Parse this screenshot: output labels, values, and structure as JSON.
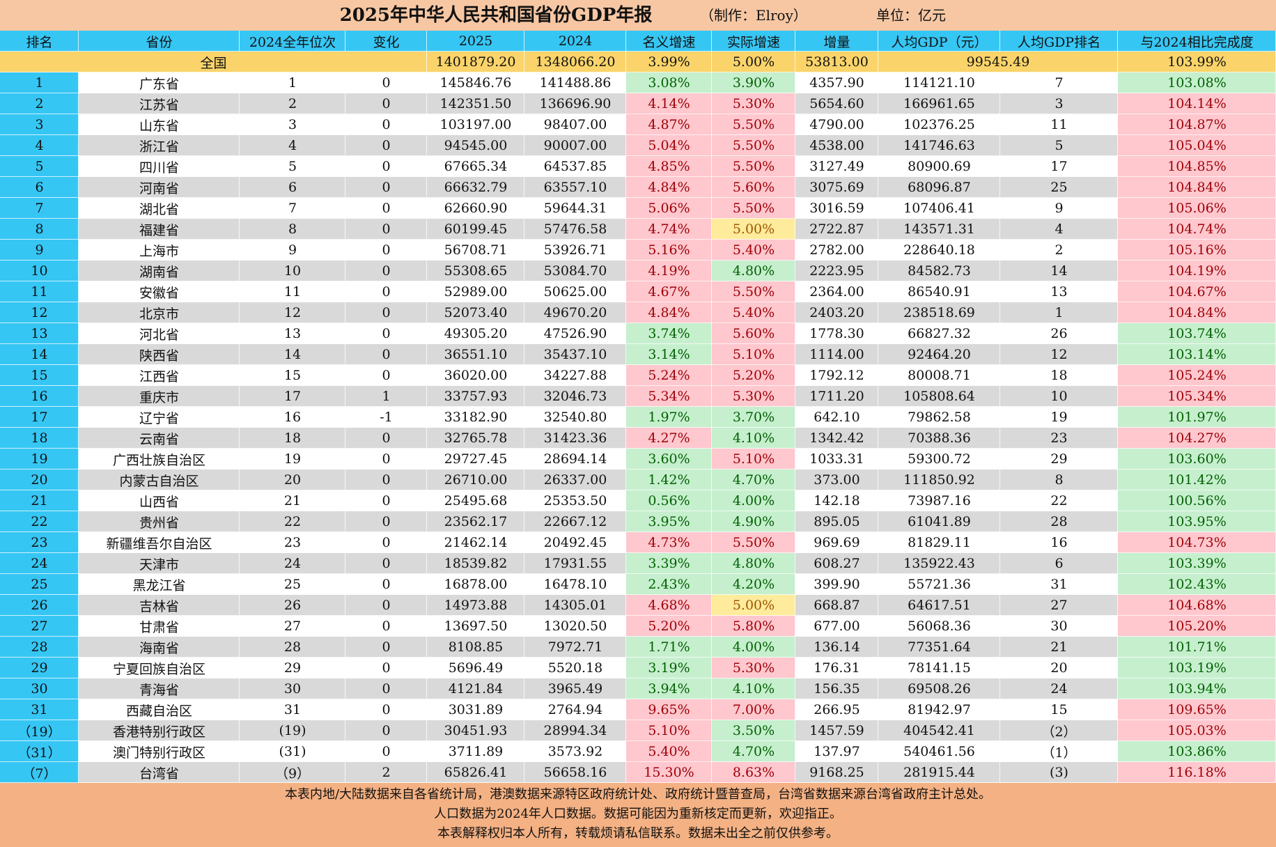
{
  "header": {
    "title": "2025年中华人民共和国省份GDP年报",
    "credit": "（制作：Elroy）",
    "unit": "单位：亿元"
  },
  "table": {
    "columns": [
      "排名",
      "省份",
      "2024全年位次",
      "变化",
      "2025",
      "2024",
      "名义增速",
      "实际增速",
      "增量",
      "人均GDP（元）",
      "人均GDP排名",
      "与2024相比完成度"
    ],
    "summary": [
      "全国",
      "1401879.20",
      "1348066.20",
      "3.99%",
      "5.00%",
      "53813.00",
      "99545.49",
      "103.99%"
    ],
    "rows": [
      {
        "cells": [
          "1",
          "广东省",
          "1",
          "0",
          "145846.76",
          "141488.86",
          "3.08%",
          "3.90%",
          "4357.90",
          "114121.10",
          "7",
          "103.08%"
        ],
        "shade": [
          "green",
          "green",
          "green"
        ]
      },
      {
        "cells": [
          "2",
          "江苏省",
          "2",
          "0",
          "142351.50",
          "136696.90",
          "4.14%",
          "5.30%",
          "5654.60",
          "166961.65",
          "3",
          "104.14%"
        ],
        "shade": [
          "red",
          "red",
          "red"
        ]
      },
      {
        "cells": [
          "3",
          "山东省",
          "3",
          "0",
          "103197.00",
          "98407.00",
          "4.87%",
          "5.50%",
          "4790.00",
          "102376.25",
          "11",
          "104.87%"
        ],
        "shade": [
          "red",
          "red",
          "red"
        ]
      },
      {
        "cells": [
          "4",
          "浙江省",
          "4",
          "0",
          "94545.00",
          "90007.00",
          "5.04%",
          "5.50%",
          "4538.00",
          "141746.63",
          "5",
          "105.04%"
        ],
        "shade": [
          "red",
          "red",
          "red"
        ]
      },
      {
        "cells": [
          "5",
          "四川省",
          "5",
          "0",
          "67665.34",
          "64537.85",
          "4.85%",
          "5.50%",
          "3127.49",
          "80900.69",
          "17",
          "104.85%"
        ],
        "shade": [
          "red",
          "red",
          "red"
        ]
      },
      {
        "cells": [
          "6",
          "河南省",
          "6",
          "0",
          "66632.79",
          "63557.10",
          "4.84%",
          "5.60%",
          "3075.69",
          "68096.87",
          "25",
          "104.84%"
        ],
        "shade": [
          "red",
          "red",
          "red"
        ]
      },
      {
        "cells": [
          "7",
          "湖北省",
          "7",
          "0",
          "62660.90",
          "59644.31",
          "5.06%",
          "5.50%",
          "3016.59",
          "107406.41",
          "9",
          "105.06%"
        ],
        "shade": [
          "red",
          "red",
          "red"
        ]
      },
      {
        "cells": [
          "8",
          "福建省",
          "8",
          "0",
          "60199.45",
          "57476.58",
          "4.74%",
          "5.00%",
          "2722.87",
          "143571.31",
          "4",
          "104.74%"
        ],
        "shade": [
          "red",
          "yellow",
          "red"
        ]
      },
      {
        "cells": [
          "9",
          "上海市",
          "9",
          "0",
          "56708.71",
          "53926.71",
          "5.16%",
          "5.40%",
          "2782.00",
          "228640.18",
          "2",
          "105.16%"
        ],
        "shade": [
          "red",
          "red",
          "red"
        ]
      },
      {
        "cells": [
          "10",
          "湖南省",
          "10",
          "0",
          "55308.65",
          "53084.70",
          "4.19%",
          "4.80%",
          "2223.95",
          "84582.73",
          "14",
          "104.19%"
        ],
        "shade": [
          "red",
          "green",
          "red"
        ]
      },
      {
        "cells": [
          "11",
          "安徽省",
          "11",
          "0",
          "52989.00",
          "50625.00",
          "4.67%",
          "5.50%",
          "2364.00",
          "86540.91",
          "13",
          "104.67%"
        ],
        "shade": [
          "red",
          "red",
          "red"
        ]
      },
      {
        "cells": [
          "12",
          "北京市",
          "12",
          "0",
          "52073.40",
          "49670.20",
          "4.84%",
          "5.40%",
          "2403.20",
          "238518.69",
          "1",
          "104.84%"
        ],
        "shade": [
          "red",
          "red",
          "red"
        ]
      },
      {
        "cells": [
          "13",
          "河北省",
          "13",
          "0",
          "49305.20",
          "47526.90",
          "3.74%",
          "5.60%",
          "1778.30",
          "66827.32",
          "26",
          "103.74%"
        ],
        "shade": [
          "green",
          "red",
          "green"
        ]
      },
      {
        "cells": [
          "14",
          "陕西省",
          "14",
          "0",
          "36551.10",
          "35437.10",
          "3.14%",
          "5.10%",
          "1114.00",
          "92464.20",
          "12",
          "103.14%"
        ],
        "shade": [
          "green",
          "red",
          "green"
        ]
      },
      {
        "cells": [
          "15",
          "江西省",
          "15",
          "0",
          "36020.00",
          "34227.88",
          "5.24%",
          "5.20%",
          "1792.12",
          "80008.71",
          "18",
          "105.24%"
        ],
        "shade": [
          "red",
          "red",
          "red"
        ]
      },
      {
        "cells": [
          "16",
          "重庆市",
          "17",
          "1",
          "33757.93",
          "32046.73",
          "5.34%",
          "5.30%",
          "1711.20",
          "105808.64",
          "10",
          "105.34%"
        ],
        "shade": [
          "red",
          "red",
          "red"
        ]
      },
      {
        "cells": [
          "17",
          "辽宁省",
          "16",
          "-1",
          "33182.90",
          "32540.80",
          "1.97%",
          "3.70%",
          "642.10",
          "79862.58",
          "19",
          "101.97%"
        ],
        "shade": [
          "green",
          "green",
          "green"
        ]
      },
      {
        "cells": [
          "18",
          "云南省",
          "18",
          "0",
          "32765.78",
          "31423.36",
          "4.27%",
          "4.10%",
          "1342.42",
          "70388.36",
          "23",
          "104.27%"
        ],
        "shade": [
          "red",
          "green",
          "red"
        ]
      },
      {
        "cells": [
          "19",
          "广西壮族自治区",
          "19",
          "0",
          "29727.45",
          "28694.14",
          "3.60%",
          "5.10%",
          "1033.31",
          "59300.72",
          "29",
          "103.60%"
        ],
        "shade": [
          "green",
          "red",
          "green"
        ]
      },
      {
        "cells": [
          "20",
          "内蒙古自治区",
          "20",
          "0",
          "26710.00",
          "26337.00",
          "1.42%",
          "4.70%",
          "373.00",
          "111850.92",
          "8",
          "101.42%"
        ],
        "shade": [
          "green",
          "green",
          "green"
        ]
      },
      {
        "cells": [
          "21",
          "山西省",
          "21",
          "0",
          "25495.68",
          "25353.50",
          "0.56%",
          "4.00%",
          "142.18",
          "73987.16",
          "22",
          "100.56%"
        ],
        "shade": [
          "green",
          "green",
          "green"
        ]
      },
      {
        "cells": [
          "22",
          "贵州省",
          "22",
          "0",
          "23562.17",
          "22667.12",
          "3.95%",
          "4.90%",
          "895.05",
          "61041.89",
          "28",
          "103.95%"
        ],
        "shade": [
          "green",
          "green",
          "green"
        ]
      },
      {
        "cells": [
          "23",
          "新疆维吾尔自治区",
          "23",
          "0",
          "21462.14",
          "20492.45",
          "4.73%",
          "5.50%",
          "969.69",
          "81829.11",
          "16",
          "104.73%"
        ],
        "shade": [
          "red",
          "red",
          "red"
        ]
      },
      {
        "cells": [
          "24",
          "天津市",
          "24",
          "0",
          "18539.82",
          "17931.55",
          "3.39%",
          "4.80%",
          "608.27",
          "135922.43",
          "6",
          "103.39%"
        ],
        "shade": [
          "green",
          "green",
          "green"
        ]
      },
      {
        "cells": [
          "25",
          "黑龙江省",
          "25",
          "0",
          "16878.00",
          "16478.10",
          "2.43%",
          "4.20%",
          "399.90",
          "55721.36",
          "31",
          "102.43%"
        ],
        "shade": [
          "green",
          "green",
          "green"
        ]
      },
      {
        "cells": [
          "26",
          "吉林省",
          "26",
          "0",
          "14973.88",
          "14305.01",
          "4.68%",
          "5.00%",
          "668.87",
          "64617.51",
          "27",
          "104.68%"
        ],
        "shade": [
          "red",
          "yellow",
          "red"
        ]
      },
      {
        "cells": [
          "27",
          "甘肃省",
          "27",
          "0",
          "13697.50",
          "13020.50",
          "5.20%",
          "5.80%",
          "677.00",
          "56068.36",
          "30",
          "105.20%"
        ],
        "shade": [
          "red",
          "red",
          "red"
        ]
      },
      {
        "cells": [
          "28",
          "海南省",
          "28",
          "0",
          "8108.85",
          "7972.71",
          "1.71%",
          "4.00%",
          "136.14",
          "77351.64",
          "21",
          "101.71%"
        ],
        "shade": [
          "green",
          "green",
          "green"
        ]
      },
      {
        "cells": [
          "29",
          "宁夏回族自治区",
          "29",
          "0",
          "5696.49",
          "5520.18",
          "3.19%",
          "5.30%",
          "176.31",
          "78141.15",
          "20",
          "103.19%"
        ],
        "shade": [
          "green",
          "red",
          "green"
        ]
      },
      {
        "cells": [
          "30",
          "青海省",
          "30",
          "0",
          "4121.84",
          "3965.49",
          "3.94%",
          "4.10%",
          "156.35",
          "69508.26",
          "24",
          "103.94%"
        ],
        "shade": [
          "green",
          "green",
          "green"
        ]
      },
      {
        "cells": [
          "31",
          "西藏自治区",
          "31",
          "0",
          "3031.89",
          "2764.94",
          "9.65%",
          "7.00%",
          "266.95",
          "81942.97",
          "15",
          "109.65%"
        ],
        "shade": [
          "red",
          "red",
          "red"
        ]
      },
      {
        "cells": [
          "（19）",
          "香港特别行政区",
          "(19)",
          "0",
          "30451.93",
          "28994.34",
          "5.10%",
          "3.50%",
          "1457.59",
          "404542.41",
          "（2）",
          "105.03%"
        ],
        "shade": [
          "red",
          "green",
          "red"
        ]
      },
      {
        "cells": [
          "（31）",
          "澳门特别行政区",
          "(31)",
          "0",
          "3711.89",
          "3573.92",
          "5.40%",
          "4.70%",
          "137.97",
          "540461.56",
          "（1）",
          "103.86%"
        ],
        "shade": [
          "red",
          "green",
          "green"
        ]
      },
      {
        "cells": [
          "（7）",
          "台湾省",
          "（9）",
          "2",
          "65826.41",
          "56658.16",
          "15.30%",
          "8.63%",
          "9168.25",
          "281915.44",
          "(3)",
          "116.18%"
        ],
        "shade": [
          "red",
          "red",
          "red"
        ]
      }
    ]
  },
  "footer": [
    "本表内地/大陆数据来自各省统计局，港澳数据来源特区政府统计处、政府统计暨普查局，台湾省数据来源台湾省政府主计总处。",
    "人口数据为2024年人口数据。数据可能因为重新核定而更新，欢迎指正。",
    "本表解释权归本人所有，转载烦请私信联系。数据未出全之前仅供参考。"
  ]
}
